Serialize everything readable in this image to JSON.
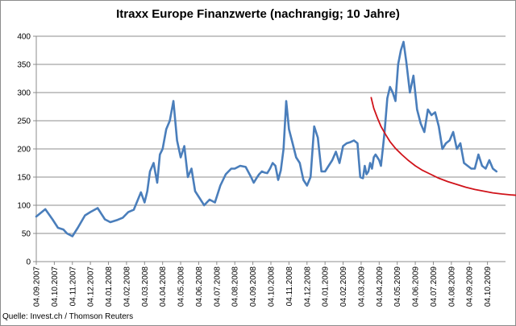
{
  "chart_data": {
    "type": "line",
    "title": "Itraxx Europe Finanzwerte (nachrangig; 10 Jahre)",
    "source": "Quelle: Invest.ch / Thomson Reuters",
    "xlabel": "",
    "ylabel": "",
    "ylim": [
      0,
      400
    ],
    "grid": true,
    "legend": "none",
    "y_ticks": [
      "0",
      "50",
      "100",
      "150",
      "200",
      "250",
      "300",
      "350",
      "400"
    ],
    "x_tick_labels": [
      "04.09.2007",
      "04.10.2007",
      "04.11.2007",
      "04.12.2007",
      "04.01.2008",
      "04.02.2008",
      "04.03.2008",
      "04.04.2008",
      "04.05.2008",
      "04.06.2008",
      "04.07.2008",
      "04.08.2008",
      "04.09.2008",
      "04.10.2008",
      "04.11.2008",
      "04.12.2008",
      "04.01.2009",
      "04.02.2009",
      "04.03.2009",
      "04.04.2009",
      "04.05.2009",
      "04.06.2009",
      "04.07.2009",
      "04.08.2009",
      "04.09.2009",
      "04.10.2009"
    ],
    "series": [
      {
        "color": "#4a7ebb",
        "x": [
          0,
          0.5,
          0.9,
          1.2,
          1.5,
          1.7,
          2.0,
          2.3,
          2.7,
          3.0,
          3.4,
          3.8,
          4.1,
          4.5,
          4.8,
          5.1,
          5.4,
          5.8,
          6.0,
          6.15,
          6.3,
          6.5,
          6.7,
          6.85,
          7.0,
          7.2,
          7.4,
          7.6,
          7.8,
          8.0,
          8.2,
          8.4,
          8.6,
          8.8,
          9.0,
          9.3,
          9.6,
          9.9,
          10.2,
          10.5,
          10.8,
          11.0,
          11.3,
          11.6,
          11.9,
          12.05,
          12.2,
          12.35,
          12.5,
          12.65,
          12.8,
          12.95,
          13.1,
          13.25,
          13.4,
          13.55,
          13.7,
          13.85,
          14.0,
          14.2,
          14.4,
          14.6,
          14.8,
          15.0,
          15.2,
          15.4,
          15.6,
          15.8,
          16.0,
          16.2,
          16.4,
          16.6,
          16.8,
          17.0,
          17.2,
          17.4,
          17.6,
          17.8,
          17.95,
          18.1,
          18.2,
          18.3,
          18.4,
          18.5,
          18.6,
          18.7,
          18.8,
          18.9,
          19.0,
          19.1,
          19.2,
          19.3,
          19.45,
          19.6,
          19.75,
          19.9,
          20.05,
          20.2,
          20.35,
          20.5,
          20.7,
          20.9,
          21.1,
          21.3,
          21.5,
          21.7,
          21.9,
          22.1,
          22.3,
          22.5,
          22.7,
          22.9,
          23.1,
          23.3,
          23.5,
          23.7,
          23.9,
          24.1,
          24.3,
          24.5,
          24.7,
          24.9,
          25.1,
          25.3,
          25.5
        ],
        "values": [
          80,
          93,
          75,
          60,
          57,
          50,
          45,
          60,
          82,
          88,
          95,
          75,
          70,
          74,
          78,
          88,
          92,
          123,
          105,
          125,
          160,
          175,
          140,
          190,
          200,
          235,
          250,
          285,
          215,
          185,
          205,
          150,
          165,
          125,
          115,
          100,
          110,
          105,
          135,
          155,
          165,
          165,
          170,
          168,
          150,
          140,
          148,
          155,
          160,
          158,
          157,
          165,
          175,
          170,
          145,
          162,
          200,
          285,
          235,
          210,
          185,
          175,
          145,
          135,
          150,
          240,
          220,
          160,
          160,
          170,
          180,
          195,
          175,
          205,
          210,
          212,
          215,
          210,
          150,
          148,
          170,
          155,
          160,
          175,
          165,
          185,
          190,
          185,
          180,
          170,
          200,
          230,
          290,
          310,
          300,
          285,
          350,
          375,
          390,
          355,
          300,
          330,
          270,
          245,
          230,
          270,
          260,
          265,
          240,
          200,
          210,
          215,
          230,
          200,
          210,
          175,
          170,
          165,
          165,
          190,
          170,
          165,
          180,
          165,
          160
        ]
      }
    ],
    "annotations": [
      {
        "type": "trend-curve",
        "color": "#d0131a",
        "x": [
          18.55,
          18.7,
          18.9,
          19.1,
          19.35,
          19.6,
          19.9,
          20.25,
          20.6,
          21.0,
          21.4,
          21.85,
          22.3,
          22.8,
          23.3,
          23.8,
          24.3,
          24.8,
          25.3,
          25.8,
          26.3,
          26.7
        ],
        "values": [
          292,
          272,
          255,
          240,
          226,
          213,
          201,
          190,
          180,
          170,
          162,
          155,
          148,
          142,
          137,
          132,
          128,
          125,
          122,
          120,
          118.5,
          117.5
        ]
      }
    ]
  }
}
